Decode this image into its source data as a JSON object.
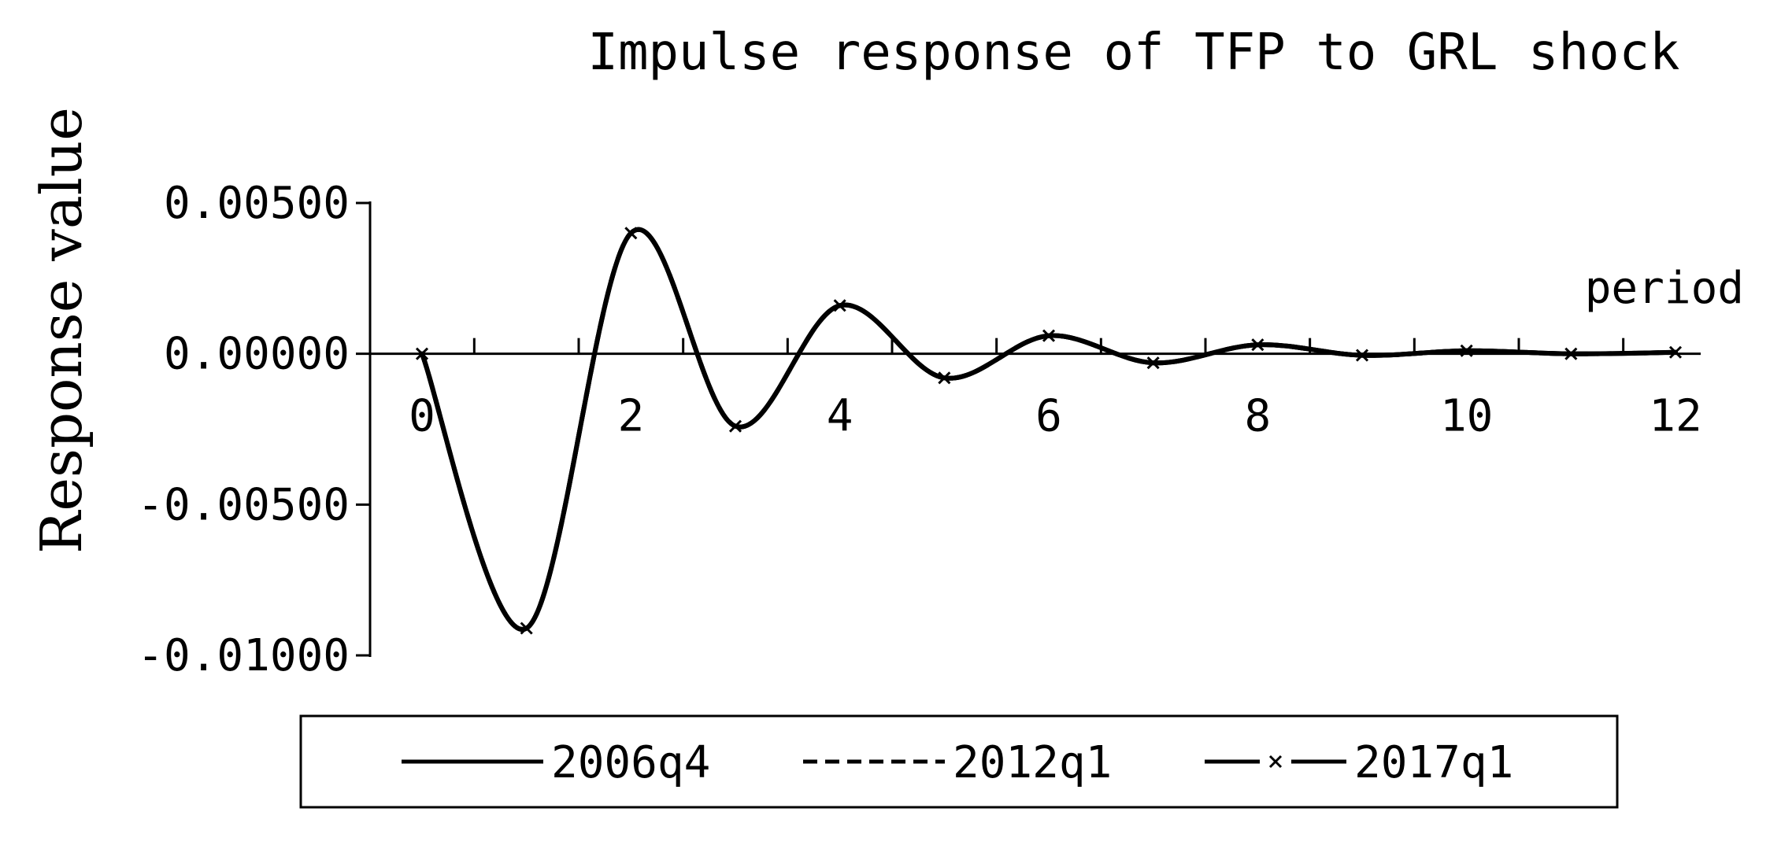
{
  "chart_data": {
    "type": "line",
    "title": "Impulse response of TFP to GRL shock",
    "xlabel": "period",
    "ylabel": "Response  value",
    "x": [
      0,
      1,
      2,
      3,
      4,
      5,
      6,
      7,
      8,
      9,
      10,
      11,
      12
    ],
    "x_ticks": [
      0,
      2,
      4,
      6,
      8,
      10,
      12
    ],
    "x_tick_labels": [
      "0",
      "2",
      "4",
      "6",
      "8",
      "10",
      "12"
    ],
    "y_ticks": [
      0.005,
      0.0,
      -0.005,
      -0.01
    ],
    "y_tick_labels": [
      "0.00500",
      "0.00000",
      "-0.00500",
      "-0.01000"
    ],
    "xlim": [
      0,
      12.5
    ],
    "ylim": [
      -0.01,
      0.005
    ],
    "grid": false,
    "legend_position": "bottom",
    "series": [
      {
        "name": "2006q4",
        "line_style": "solid",
        "marker": "none",
        "values": [
          0.0,
          -0.0091,
          0.004,
          -0.0024,
          0.0016,
          -0.0008,
          0.0006,
          -0.0003,
          0.0003,
          -5e-05,
          0.0001,
          0.0,
          5e-05
        ]
      },
      {
        "name": "2012q1",
        "line_style": "dashed",
        "marker": "none",
        "values": [
          0.0,
          -0.0091,
          0.004,
          -0.0024,
          0.0016,
          -0.0008,
          0.0006,
          -0.0003,
          0.0003,
          -5e-05,
          0.0001,
          0.0,
          5e-05
        ]
      },
      {
        "name": "2017q1",
        "line_style": "solid",
        "marker": "x",
        "values": [
          0.0,
          -0.0091,
          0.004,
          -0.0024,
          0.0016,
          -0.0008,
          0.0006,
          -0.0003,
          0.0003,
          -5e-05,
          0.0001,
          0.0,
          5e-05
        ]
      }
    ],
    "line_color": "#000000"
  }
}
